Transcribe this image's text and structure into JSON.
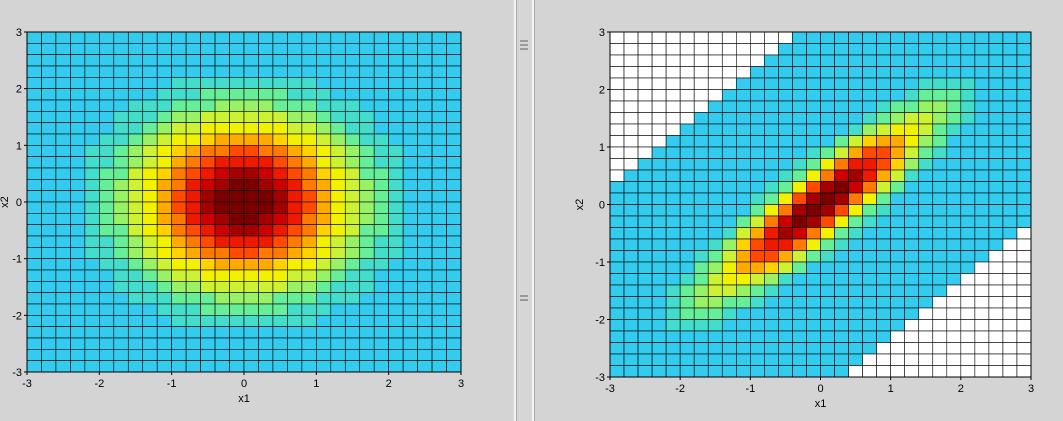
{
  "chart_data": [
    {
      "type": "heatmap",
      "title": "",
      "xlabel": "x1",
      "ylabel": "x2",
      "xlim": [
        -3,
        3
      ],
      "ylim": [
        -3,
        3
      ],
      "xticks": [
        "-3",
        "-2",
        "-1",
        "0",
        "1",
        "2",
        "3"
      ],
      "yticks": [
        "3",
        "2",
        "1",
        "0",
        "-1",
        "-2",
        "-3"
      ],
      "grid": true,
      "grid_cells": 30,
      "colormap": "jet",
      "surface": "standard bivariate normal density (independent, correlation 0), peak at (0,0), values fall to the colormap floor beyond radius ~2.5",
      "correlation": 0,
      "masked_outside_band": false
    },
    {
      "type": "heatmap",
      "title": "",
      "xlabel": "x1",
      "ylabel": "x2",
      "xlim": [
        -3,
        3
      ],
      "ylim": [
        -3,
        3
      ],
      "xticks": [
        "-3",
        "-2",
        "-1",
        "0",
        "1",
        "2",
        "3"
      ],
      "yticks": [
        "3",
        "2",
        "1",
        "0",
        "-1",
        "-2",
        "-3"
      ],
      "grid": true,
      "grid_cells": 30,
      "colormap": "jet",
      "surface": "bivariate normal density with strong positive correlation, ridge along x2 = x1; cells outside the diagonal band are blank (white)",
      "correlation": 0.9,
      "masked_outside_band": true
    }
  ],
  "colors": {
    "background": "#d4d4d4",
    "empty_cell": "#ffffff",
    "grid_line": "#000000",
    "colormap_floor": "#33ccee"
  }
}
